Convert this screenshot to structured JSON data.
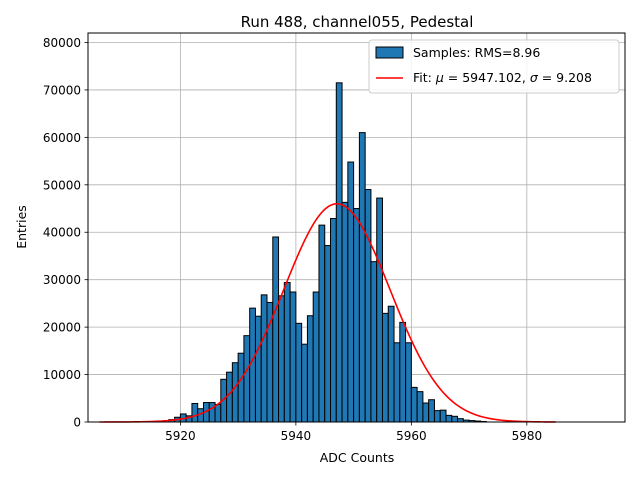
{
  "chart_data": {
    "type": "bar",
    "title": "Run 488, channel055, Pedestal",
    "xlabel": "ADC Counts",
    "ylabel": "Entries",
    "xlim": [
      5904,
      5997
    ],
    "ylim": [
      0,
      82000
    ],
    "x_ticks": [
      5920,
      5940,
      5960,
      5980
    ],
    "y_ticks": [
      0,
      10000,
      20000,
      30000,
      40000,
      50000,
      60000,
      70000,
      80000
    ],
    "grid": true,
    "legend_position": "top-right",
    "bin_width": 1,
    "bin_start": 5918,
    "counts": [
      500,
      1000,
      1700,
      1300,
      3900,
      2800,
      4100,
      4100,
      3700,
      9000,
      10500,
      12500,
      14500,
      18200,
      24000,
      22300,
      26800,
      25200,
      39000,
      26600,
      29400,
      27400,
      20800,
      16400,
      22400,
      27400,
      41500,
      37200,
      42900,
      71500,
      46300,
      54800,
      45000,
      61000,
      49000,
      33800,
      47200,
      22900,
      24400,
      16700,
      21000,
      16700,
      7300,
      6400,
      4000,
      4700,
      2400,
      2500,
      1400,
      1200,
      700,
      400,
      300,
      200,
      100
    ],
    "series": [
      {
        "name": "Samples: RMS=8.96",
        "kind": "histogram",
        "color": "#1f77b4",
        "edge_color": "#000000"
      },
      {
        "name_prefix": "Fit: ",
        "mu_symbol": "μ",
        "mu_text": " = 5947.102, ",
        "sigma_symbol": "σ",
        "sigma_text": " = 9.208",
        "kind": "line",
        "color": "#ff0000",
        "mu": 5947.102,
        "sigma": 9.208,
        "amplitude": 46000,
        "x_range": [
          5906,
          5985
        ]
      }
    ]
  }
}
